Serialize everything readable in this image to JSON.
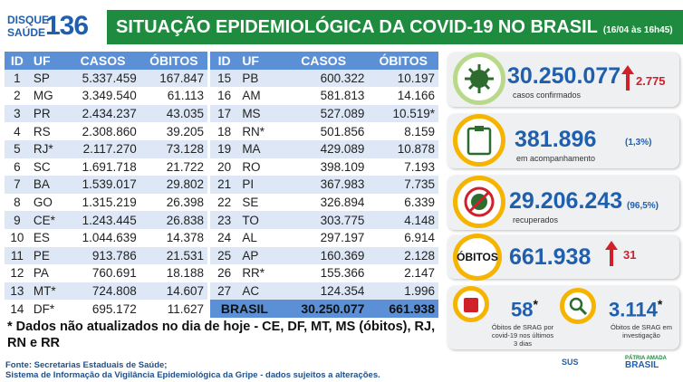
{
  "header": {
    "logo_top": "DISQUE",
    "logo_bottom": "SAÚDE",
    "logo_number": "136",
    "title": "SITUAÇÃO EPIDEMIOLÓGICA DA COVID-19 NO BRASIL",
    "date": "(16/04 às 16h45)"
  },
  "table": {
    "columns": [
      "ID",
      "UF",
      "CASOS",
      "ÓBITOS"
    ],
    "rows": [
      [
        "1",
        "SP",
        "5.337.459",
        "167.847"
      ],
      [
        "2",
        "MG",
        "3.349.540",
        "61.113"
      ],
      [
        "3",
        "PR",
        "2.434.237",
        "43.035"
      ],
      [
        "4",
        "RS",
        "2.308.860",
        "39.205"
      ],
      [
        "5",
        "RJ*",
        "2.117.270",
        "73.128"
      ],
      [
        "6",
        "SC",
        "1.691.718",
        "21.722"
      ],
      [
        "7",
        "BA",
        "1.539.017",
        "29.802"
      ],
      [
        "8",
        "GO",
        "1.315.219",
        "26.398"
      ],
      [
        "9",
        "CE*",
        "1.243.445",
        "26.838"
      ],
      [
        "10",
        "ES",
        "1.044.639",
        "14.378"
      ],
      [
        "11",
        "PE",
        "913.786",
        "21.531"
      ],
      [
        "12",
        "PA",
        "760.691",
        "18.188"
      ],
      [
        "13",
        "MT*",
        "724.808",
        "14.607"
      ],
      [
        "14",
        "DF*",
        "695.172",
        "11.627"
      ],
      [
        "15",
        "PB",
        "600.322",
        "10.197"
      ],
      [
        "16",
        "AM",
        "581.813",
        "14.166"
      ],
      [
        "17",
        "MS",
        "527.089",
        "10.519*"
      ],
      [
        "18",
        "RN*",
        "501.856",
        "8.159"
      ],
      [
        "19",
        "MA",
        "429.089",
        "10.878"
      ],
      [
        "20",
        "RO",
        "398.109",
        "7.193"
      ],
      [
        "21",
        "PI",
        "367.983",
        "7.735"
      ],
      [
        "22",
        "SE",
        "326.894",
        "6.339"
      ],
      [
        "23",
        "TO",
        "303.775",
        "4.148"
      ],
      [
        "24",
        "AL",
        "297.197",
        "6.914"
      ],
      [
        "25",
        "AP",
        "160.369",
        "2.128"
      ],
      [
        "26",
        "RR*",
        "155.366",
        "2.147"
      ],
      [
        "27",
        "AC",
        "124.354",
        "1.996"
      ]
    ],
    "total": [
      "BRASIL",
      "30.250.077",
      "661.938"
    ]
  },
  "stats": {
    "confirmed": {
      "value": "30.250.077",
      "delta": "2.775",
      "label": "casos confirmados"
    },
    "monitoring": {
      "value": "381.896",
      "percent": "(1,3%)",
      "label": "em acompanhamento"
    },
    "recovered": {
      "value": "29.206.243",
      "percent": "(96,5%)",
      "label": "recuperados"
    },
    "deaths": {
      "title": "ÓBITOS",
      "value": "661.938",
      "delta": "31"
    },
    "srag_recent": {
      "value": "58",
      "mark": "*",
      "label": "Óbitos de SRAG por covid-19 nos últimos 3 dias"
    },
    "srag_investigation": {
      "value": "3.114",
      "mark": "*",
      "label": "Óbitos de SRAG em investigação"
    }
  },
  "footnote": "* Dados não atualizados no dia de hoje - CE, DF, MT, MS (óbitos), RJ, RN e RR",
  "sources": [
    "Fonte: Secretarias Estaduais de Saúde;",
    "Sistema de Informação da Vigilância Epidemiológica da Gripe - dados sujeitos a alterações."
  ],
  "footer_logos": {
    "sus": "SUS",
    "gov_top": "PÁTRIA AMADA",
    "gov_bottom": "BRASIL"
  }
}
